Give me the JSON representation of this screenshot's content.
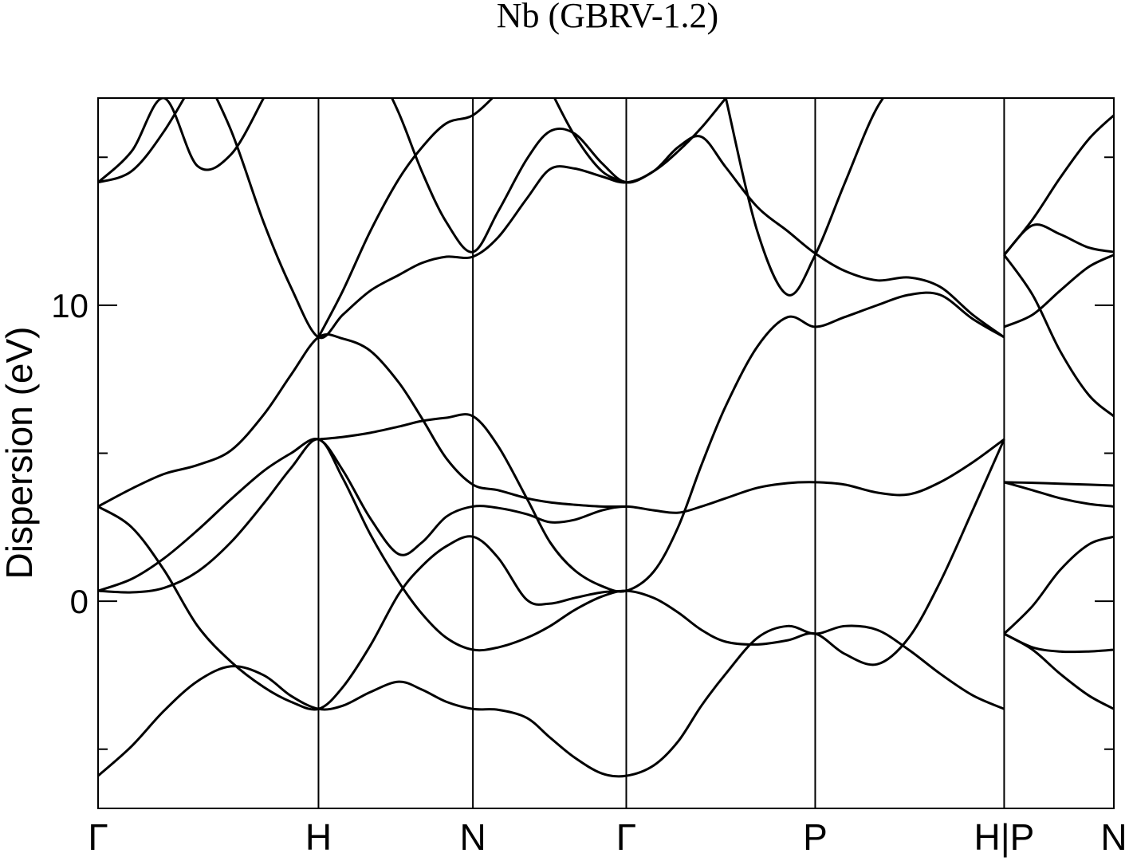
{
  "chart_data": {
    "type": "line",
    "title": "Nb (GBRV-1.2)",
    "y_label": "Dispersion (eV)",
    "color": "#000000",
    "xlim": [
      0,
      1
    ],
    "xticks": [
      {
        "value": 0,
        "label": "Γ"
      },
      {
        "value": 0.217,
        "label": "H"
      },
      {
        "value": 0.369,
        "label": "N"
      },
      {
        "value": 0.52,
        "label": "Γ"
      },
      {
        "value": 0.706,
        "label": "P"
      },
      {
        "value": 0.892,
        "label": "H|P"
      },
      {
        "value": 1,
        "label": "N"
      }
    ],
    "ylim": [
      -7,
      17
    ],
    "yticks": [
      0,
      10
    ],
    "yminorticks": [
      -5,
      5,
      15
    ],
    "x": [
      0,
      0.033,
      0.065,
      0.098,
      0.131,
      0.163,
      0.19,
      0.217,
      0.241,
      0.268,
      0.296,
      0.319,
      0.343,
      0.369,
      0.394,
      0.422,
      0.445,
      0.469,
      0.496,
      0.52,
      0.547,
      0.571,
      0.594,
      0.618,
      0.649,
      0.679,
      0.706,
      0.735,
      0.767,
      0.798,
      0.829,
      0.861,
      0.892,
      0.892,
      0.92,
      0.947,
      0.975,
      1
    ],
    "series": [
      {
        "values": [
          -5.9,
          -4.9,
          -3.7,
          -2.7,
          -2.2,
          -2.5,
          -3.2,
          -3.64,
          -3.53,
          -3.07,
          -2.72,
          -2.99,
          -3.4,
          -3.64,
          -3.67,
          -3.94,
          -4.61,
          -5.28,
          -5.82,
          -5.9,
          -5.55,
          -4.74,
          -3.53,
          -2.45,
          -1.24,
          -0.84,
          -1.1,
          -0.84,
          -0.97,
          -1.64,
          -2.45,
          -3.18,
          -3.64,
          null,
          null,
          null,
          null,
          null
        ]
      },
      {
        "values": [
          3.2,
          2.5,
          1.05,
          -0.84,
          -2.05,
          -2.9,
          -3.4,
          -3.64,
          -2.9,
          -1.5,
          0.24,
          1.19,
          1.86,
          2.18,
          1.46,
          0.05,
          -0.08,
          0.11,
          0.3,
          0.35,
          null,
          null,
          null,
          null,
          null,
          null,
          null,
          null,
          null,
          null,
          null,
          null,
          null,
          null,
          null,
          null,
          null,
          null
        ]
      },
      {
        "values": [
          0.35,
          0.3,
          0.45,
          1.0,
          2.0,
          3.3,
          4.5,
          5.47,
          4.15,
          2.26,
          0.65,
          -0.43,
          -1.24,
          -1.64,
          -1.56,
          -1.24,
          -0.84,
          -0.3,
          0.16,
          0.35,
          0.11,
          -0.38,
          -0.97,
          -1.37,
          -1.46,
          -1.32,
          -1.1,
          -1.78,
          -2.13,
          -1.24,
          0.65,
          3.07,
          5.47,
          null,
          null,
          null,
          null,
          null
        ]
      },
      {
        "values": [
          0.35,
          0.75,
          1.45,
          2.4,
          3.45,
          4.4,
          5.0,
          5.47,
          4.42,
          2.8,
          1.59,
          1.99,
          2.86,
          3.2,
          3.15,
          2.94,
          2.67,
          2.75,
          3.07,
          3.2,
          3.07,
          2.99,
          3.2,
          3.48,
          3.83,
          3.99,
          4.02,
          3.94,
          3.67,
          3.61,
          4.02,
          4.69,
          5.47,
          null,
          null,
          null,
          null,
          null
        ]
      },
      {
        "values": [
          3.2,
          3.8,
          4.3,
          4.6,
          5.1,
          6.3,
          7.65,
          8.92,
          8.87,
          8.46,
          7.39,
          6.17,
          4.82,
          3.94,
          3.75,
          3.48,
          3.34,
          3.26,
          3.2,
          3.2,
          null,
          null,
          null,
          null,
          null,
          null,
          null,
          null,
          null,
          null,
          null,
          null,
          null,
          null,
          null,
          null,
          null,
          null
        ]
      },
      {
        "values": [
          null,
          null,
          null,
          null,
          null,
          null,
          null,
          5.47,
          5.55,
          5.69,
          5.9,
          6.09,
          6.2,
          6.25,
          5.23,
          3.48,
          1.99,
          1.05,
          0.51,
          0.35,
          1.0,
          2.5,
          4.6,
          6.6,
          8.6,
          9.6,
          9.27,
          9.6,
          10.0,
          10.35,
          10.35,
          9.54,
          8.92,
          null,
          null,
          null,
          null,
          null
        ]
      },
      {
        "values": [
          null,
          null,
          null,
          18.3,
          15.9,
          12.8,
          10.6,
          8.92,
          9.68,
          10.49,
          11.02,
          11.43,
          11.64,
          11.64,
          12.3,
          13.6,
          14.6,
          14.62,
          14.35,
          14.15,
          14.53,
          15.34,
          15.69,
          14.66,
          13.32,
          12.5,
          11.75,
          11.16,
          10.84,
          10.94,
          10.62,
          9.68,
          8.92,
          null,
          null,
          null,
          null,
          null
        ]
      },
      {
        "values": [
          null,
          null,
          null,
          null,
          null,
          null,
          null,
          8.92,
          10.49,
          12.5,
          14.26,
          15.34,
          16.15,
          16.42,
          17.2,
          null,
          null,
          null,
          null,
          null,
          null,
          null,
          null,
          null,
          null,
          null,
          null,
          null,
          null,
          null,
          null,
          null,
          null,
          null,
          null,
          null,
          null,
          null
        ]
      },
      {
        "values": [
          null,
          null,
          null,
          null,
          null,
          null,
          null,
          null,
          null,
          18.5,
          16.5,
          14.5,
          12.8,
          11.8,
          13.18,
          14.93,
          15.88,
          15.8,
          14.8,
          14.15,
          14.53,
          15.2,
          16.0,
          17.0,
          null,
          null,
          null,
          null,
          null,
          null,
          null,
          null,
          null,
          null,
          null,
          null,
          null,
          null
        ]
      },
      {
        "values": [
          null,
          null,
          null,
          null,
          null,
          null,
          null,
          null,
          null,
          null,
          null,
          null,
          null,
          null,
          null,
          null,
          17.3,
          15.74,
          14.53,
          14.15,
          null,
          null,
          null,
          null,
          null,
          null,
          null,
          null,
          null,
          null,
          null,
          null,
          null,
          null,
          null,
          null,
          null,
          null
        ]
      },
      {
        "values": [
          null,
          null,
          null,
          null,
          null,
          null,
          null,
          null,
          null,
          null,
          null,
          null,
          null,
          null,
          null,
          null,
          null,
          null,
          null,
          null,
          null,
          null,
          null,
          17.0,
          12.5,
          10.35,
          11.7,
          14.12,
          16.68,
          18.0,
          null,
          null,
          null,
          null,
          null,
          null,
          null,
          null
        ]
      },
      {
        "values": [
          14.15,
          15.2,
          17.0,
          14.7,
          15.1,
          17.0,
          null,
          null,
          null,
          null,
          null,
          null,
          null,
          null,
          null,
          null,
          null,
          null,
          null,
          null,
          null,
          null,
          null,
          null,
          null,
          null,
          null,
          null,
          null,
          null,
          null,
          null,
          null,
          null,
          null,
          null,
          null,
          null
        ]
      },
      {
        "values": [
          14.15,
          14.53,
          15.88,
          17.8,
          null,
          null,
          null,
          null,
          null,
          null,
          null,
          null,
          null,
          null,
          null,
          null,
          null,
          null,
          null,
          null,
          null,
          null,
          null,
          null,
          null,
          null,
          null,
          null,
          null,
          null,
          null,
          null,
          null,
          null,
          null,
          null,
          null,
          null
        ]
      },
      {
        "values": [
          null,
          null,
          null,
          null,
          null,
          null,
          null,
          null,
          null,
          null,
          null,
          null,
          null,
          null,
          null,
          null,
          null,
          null,
          null,
          null,
          null,
          null,
          null,
          null,
          null,
          null,
          null,
          null,
          null,
          null,
          null,
          null,
          null,
          4.02,
          4.0,
          3.97,
          3.94,
          3.91
        ]
      },
      {
        "values": [
          null,
          null,
          null,
          null,
          null,
          null,
          null,
          null,
          null,
          null,
          null,
          null,
          null,
          null,
          null,
          null,
          null,
          null,
          null,
          null,
          null,
          null,
          null,
          null,
          null,
          null,
          null,
          null,
          null,
          null,
          null,
          null,
          null,
          4.02,
          3.75,
          3.48,
          3.29,
          3.2
        ]
      },
      {
        "values": [
          null,
          null,
          null,
          null,
          null,
          null,
          null,
          null,
          null,
          null,
          null,
          null,
          null,
          null,
          null,
          null,
          null,
          null,
          null,
          null,
          null,
          null,
          null,
          null,
          null,
          null,
          null,
          null,
          null,
          null,
          null,
          null,
          null,
          -1.1,
          -1.56,
          -1.7,
          -1.7,
          -1.64
        ]
      },
      {
        "values": [
          null,
          null,
          null,
          null,
          null,
          null,
          null,
          null,
          null,
          null,
          null,
          null,
          null,
          null,
          null,
          null,
          null,
          null,
          null,
          null,
          null,
          null,
          null,
          null,
          null,
          null,
          null,
          null,
          null,
          null,
          null,
          null,
          null,
          -1.1,
          -1.64,
          -2.45,
          -3.18,
          -3.64
        ]
      },
      {
        "values": [
          null,
          null,
          null,
          null,
          null,
          null,
          null,
          null,
          null,
          null,
          null,
          null,
          null,
          null,
          null,
          null,
          null,
          null,
          null,
          null,
          null,
          null,
          null,
          null,
          null,
          null,
          null,
          null,
          null,
          null,
          null,
          null,
          null,
          -1.1,
          -0.16,
          1.05,
          1.91,
          2.18
        ]
      },
      {
        "values": [
          null,
          null,
          null,
          null,
          null,
          null,
          null,
          null,
          null,
          null,
          null,
          null,
          null,
          null,
          null,
          null,
          null,
          null,
          null,
          null,
          null,
          null,
          null,
          null,
          null,
          null,
          null,
          null,
          null,
          null,
          null,
          null,
          null,
          9.27,
          9.68,
          10.49,
          11.29,
          11.7
        ]
      },
      {
        "values": [
          null,
          null,
          null,
          null,
          null,
          null,
          null,
          null,
          null,
          null,
          null,
          null,
          null,
          null,
          null,
          null,
          null,
          null,
          null,
          null,
          null,
          null,
          null,
          null,
          null,
          null,
          null,
          null,
          null,
          null,
          null,
          null,
          null,
          11.7,
          10.35,
          8.46,
          6.98,
          6.25
        ]
      },
      {
        "values": [
          null,
          null,
          null,
          null,
          null,
          null,
          null,
          null,
          null,
          null,
          null,
          null,
          null,
          null,
          null,
          null,
          null,
          null,
          null,
          null,
          null,
          null,
          null,
          null,
          null,
          null,
          null,
          null,
          null,
          null,
          null,
          null,
          null,
          11.7,
          12.7,
          12.4,
          11.95,
          11.8
        ]
      },
      {
        "values": [
          null,
          null,
          null,
          null,
          null,
          null,
          null,
          null,
          null,
          null,
          null,
          null,
          null,
          null,
          null,
          null,
          null,
          null,
          null,
          null,
          null,
          null,
          null,
          null,
          null,
          null,
          null,
          null,
          null,
          null,
          null,
          null,
          null,
          11.7,
          12.9,
          14.3,
          15.6,
          16.42
        ]
      }
    ]
  }
}
